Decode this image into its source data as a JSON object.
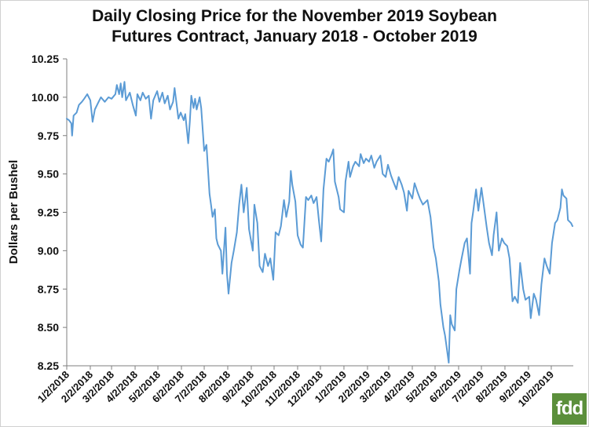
{
  "chart_data": {
    "type": "line",
    "title_lines": [
      "Daily Closing Price for the November 2019 Soybean",
      "Futures Contract, January 2018 - October 2019"
    ],
    "xlabel": "",
    "ylabel": "Dollars per Bushel",
    "ylim": [
      8.25,
      10.25
    ],
    "yticks": [
      "8.25",
      "8.50",
      "8.75",
      "9.00",
      "9.25",
      "9.50",
      "9.75",
      "10.00",
      "10.25"
    ],
    "xticks": [
      "1/2/2018",
      "2/2/2018",
      "3/2/2018",
      "4/2/2018",
      "5/2/2018",
      "6/2/2018",
      "7/2/2018",
      "8/2/2018",
      "9/2/2018",
      "10/2/2018",
      "11/2/2018",
      "12/2/2018",
      "1/2/2019",
      "2/2/2019",
      "3/2/2019",
      "4/2/2019",
      "5/2/2019",
      "6/2/2019",
      "7/2/2019",
      "8/2/2019",
      "9/2/2019",
      "10/2/2019"
    ],
    "xlim": [
      "2018-01-02",
      "2019-10-31"
    ],
    "line_color": "#5b9bd5",
    "grid": false,
    "series": [
      {
        "values": [
          [
            "2018-01-02",
            9.86
          ],
          [
            "2018-01-05",
            9.85
          ],
          [
            "2018-01-08",
            9.83
          ],
          [
            "2018-01-09",
            9.75
          ],
          [
            "2018-01-11",
            9.88
          ],
          [
            "2018-01-15",
            9.9
          ],
          [
            "2018-01-18",
            9.95
          ],
          [
            "2018-01-22",
            9.97
          ],
          [
            "2018-01-25",
            9.99
          ],
          [
            "2018-01-29",
            10.02
          ],
          [
            "2018-02-02",
            9.98
          ],
          [
            "2018-02-05",
            9.84
          ],
          [
            "2018-02-08",
            9.92
          ],
          [
            "2018-02-12",
            9.96
          ],
          [
            "2018-02-16",
            10.0
          ],
          [
            "2018-02-21",
            9.97
          ],
          [
            "2018-02-26",
            10.0
          ],
          [
            "2018-03-02",
            9.99
          ],
          [
            "2018-03-07",
            10.02
          ],
          [
            "2018-03-09",
            10.08
          ],
          [
            "2018-03-12",
            10.02
          ],
          [
            "2018-03-14",
            10.09
          ],
          [
            "2018-03-16",
            10.0
          ],
          [
            "2018-03-19",
            10.1
          ],
          [
            "2018-03-21",
            9.98
          ],
          [
            "2018-03-26",
            10.03
          ],
          [
            "2018-03-30",
            9.95
          ],
          [
            "2018-04-03",
            9.88
          ],
          [
            "2018-04-05",
            10.02
          ],
          [
            "2018-04-09",
            9.98
          ],
          [
            "2018-04-12",
            10.03
          ],
          [
            "2018-04-16",
            9.99
          ],
          [
            "2018-04-20",
            10.01
          ],
          [
            "2018-04-23",
            9.86
          ],
          [
            "2018-04-26",
            9.98
          ],
          [
            "2018-05-01",
            10.04
          ],
          [
            "2018-05-04",
            9.97
          ],
          [
            "2018-05-08",
            10.03
          ],
          [
            "2018-05-11",
            9.96
          ],
          [
            "2018-05-15",
            10.01
          ],
          [
            "2018-05-18",
            9.92
          ],
          [
            "2018-05-22",
            9.97
          ],
          [
            "2018-05-24",
            10.06
          ],
          [
            "2018-05-29",
            9.86
          ],
          [
            "2018-06-01",
            9.9
          ],
          [
            "2018-06-05",
            9.85
          ],
          [
            "2018-06-07",
            9.89
          ],
          [
            "2018-06-11",
            9.7
          ],
          [
            "2018-06-13",
            9.84
          ],
          [
            "2018-06-15",
            10.01
          ],
          [
            "2018-06-18",
            9.93
          ],
          [
            "2018-06-20",
            9.99
          ],
          [
            "2018-06-22",
            9.92
          ],
          [
            "2018-06-26",
            10.0
          ],
          [
            "2018-06-28",
            9.93
          ],
          [
            "2018-07-02",
            9.65
          ],
          [
            "2018-07-05",
            9.69
          ],
          [
            "2018-07-09",
            9.37
          ],
          [
            "2018-07-11",
            9.3
          ],
          [
            "2018-07-13",
            9.22
          ],
          [
            "2018-07-16",
            9.27
          ],
          [
            "2018-07-18",
            9.08
          ],
          [
            "2018-07-20",
            9.04
          ],
          [
            "2018-07-24",
            9.0
          ],
          [
            "2018-07-26",
            8.85
          ],
          [
            "2018-07-30",
            9.15
          ],
          [
            "2018-08-01",
            8.85
          ],
          [
            "2018-08-03",
            8.72
          ],
          [
            "2018-08-07",
            8.92
          ],
          [
            "2018-08-10",
            9.0
          ],
          [
            "2018-08-14",
            9.12
          ],
          [
            "2018-08-17",
            9.3
          ],
          [
            "2018-08-20",
            9.43
          ],
          [
            "2018-08-23",
            9.25
          ],
          [
            "2018-08-27",
            9.41
          ],
          [
            "2018-08-30",
            9.14
          ],
          [
            "2018-09-04",
            9.0
          ],
          [
            "2018-09-06",
            9.3
          ],
          [
            "2018-09-10",
            9.18
          ],
          [
            "2018-09-13",
            8.9
          ],
          [
            "2018-09-17",
            8.86
          ],
          [
            "2018-09-20",
            8.98
          ],
          [
            "2018-09-24",
            8.9
          ],
          [
            "2018-09-27",
            8.95
          ],
          [
            "2018-10-01",
            8.81
          ],
          [
            "2018-10-04",
            9.12
          ],
          [
            "2018-10-08",
            9.1
          ],
          [
            "2018-10-11",
            9.16
          ],
          [
            "2018-10-15",
            9.33
          ],
          [
            "2018-10-18",
            9.22
          ],
          [
            "2018-10-22",
            9.32
          ],
          [
            "2018-10-24",
            9.52
          ],
          [
            "2018-10-26",
            9.43
          ],
          [
            "2018-10-30",
            9.32
          ],
          [
            "2018-11-02",
            9.1
          ],
          [
            "2018-11-06",
            9.04
          ],
          [
            "2018-11-09",
            9.02
          ],
          [
            "2018-11-13",
            9.35
          ],
          [
            "2018-11-16",
            9.33
          ],
          [
            "2018-11-20",
            9.36
          ],
          [
            "2018-11-23",
            9.31
          ],
          [
            "2018-11-27",
            9.35
          ],
          [
            "2018-11-30",
            9.2
          ],
          [
            "2018-12-03",
            9.06
          ],
          [
            "2018-12-06",
            9.4
          ],
          [
            "2018-12-10",
            9.6
          ],
          [
            "2018-12-13",
            9.58
          ],
          [
            "2018-12-17",
            9.63
          ],
          [
            "2018-12-19",
            9.66
          ],
          [
            "2018-12-21",
            9.45
          ],
          [
            "2018-12-26",
            9.35
          ],
          [
            "2018-12-28",
            9.27
          ],
          [
            "2019-01-02",
            9.25
          ],
          [
            "2019-01-04",
            9.45
          ],
          [
            "2019-01-08",
            9.58
          ],
          [
            "2019-01-10",
            9.48
          ],
          [
            "2019-01-14",
            9.55
          ],
          [
            "2019-01-17",
            9.58
          ],
          [
            "2019-01-22",
            9.55
          ],
          [
            "2019-01-24",
            9.63
          ],
          [
            "2019-01-28",
            9.57
          ],
          [
            "2019-01-31",
            9.6
          ],
          [
            "2019-02-04",
            9.58
          ],
          [
            "2019-02-07",
            9.62
          ],
          [
            "2019-02-11",
            9.54
          ],
          [
            "2019-02-14",
            9.58
          ],
          [
            "2019-02-19",
            9.62
          ],
          [
            "2019-02-22",
            9.5
          ],
          [
            "2019-02-26",
            9.48
          ],
          [
            "2019-03-01",
            9.56
          ],
          [
            "2019-03-05",
            9.49
          ],
          [
            "2019-03-08",
            9.45
          ],
          [
            "2019-03-12",
            9.4
          ],
          [
            "2019-03-15",
            9.48
          ],
          [
            "2019-03-19",
            9.43
          ],
          [
            "2019-03-22",
            9.38
          ],
          [
            "2019-03-26",
            9.26
          ],
          [
            "2019-03-28",
            9.39
          ],
          [
            "2019-04-02",
            9.34
          ],
          [
            "2019-04-05",
            9.44
          ],
          [
            "2019-04-09",
            9.38
          ],
          [
            "2019-04-12",
            9.34
          ],
          [
            "2019-04-16",
            9.3
          ],
          [
            "2019-04-22",
            9.33
          ],
          [
            "2019-04-26",
            9.22
          ],
          [
            "2019-04-30",
            9.02
          ],
          [
            "2019-05-03",
            8.95
          ],
          [
            "2019-05-07",
            8.8
          ],
          [
            "2019-05-09",
            8.65
          ],
          [
            "2019-05-13",
            8.5
          ],
          [
            "2019-05-15",
            8.45
          ],
          [
            "2019-05-17",
            8.38
          ],
          [
            "2019-05-20",
            8.27
          ],
          [
            "2019-05-22",
            8.58
          ],
          [
            "2019-05-24",
            8.52
          ],
          [
            "2019-05-28",
            8.48
          ],
          [
            "2019-05-30",
            8.75
          ],
          [
            "2019-06-03",
            8.87
          ],
          [
            "2019-06-06",
            8.95
          ],
          [
            "2019-06-10",
            9.05
          ],
          [
            "2019-06-13",
            9.08
          ],
          [
            "2019-06-17",
            8.85
          ],
          [
            "2019-06-19",
            9.18
          ],
          [
            "2019-06-21",
            9.25
          ],
          [
            "2019-06-25",
            9.4
          ],
          [
            "2019-06-28",
            9.26
          ],
          [
            "2019-07-02",
            9.41
          ],
          [
            "2019-07-05",
            9.3
          ],
          [
            "2019-07-09",
            9.15
          ],
          [
            "2019-07-12",
            9.05
          ],
          [
            "2019-07-16",
            8.97
          ],
          [
            "2019-07-18",
            9.1
          ],
          [
            "2019-07-22",
            9.25
          ],
          [
            "2019-07-25",
            9.0
          ],
          [
            "2019-07-29",
            9.08
          ],
          [
            "2019-08-01",
            9.05
          ],
          [
            "2019-08-05",
            9.03
          ],
          [
            "2019-08-08",
            8.95
          ],
          [
            "2019-08-12",
            8.67
          ],
          [
            "2019-08-15",
            8.7
          ],
          [
            "2019-08-19",
            8.66
          ],
          [
            "2019-08-22",
            8.92
          ],
          [
            "2019-08-26",
            8.75
          ],
          [
            "2019-08-29",
            8.68
          ],
          [
            "2019-09-03",
            8.7
          ],
          [
            "2019-09-05",
            8.56
          ],
          [
            "2019-09-09",
            8.72
          ],
          [
            "2019-09-12",
            8.68
          ],
          [
            "2019-09-16",
            8.58
          ],
          [
            "2019-09-19",
            8.78
          ],
          [
            "2019-09-23",
            8.95
          ],
          [
            "2019-09-26",
            8.9
          ],
          [
            "2019-09-30",
            8.85
          ],
          [
            "2019-10-03",
            9.05
          ],
          [
            "2019-10-07",
            9.18
          ],
          [
            "2019-10-10",
            9.2
          ],
          [
            "2019-10-14",
            9.28
          ],
          [
            "2019-10-16",
            9.4
          ],
          [
            "2019-10-18",
            9.36
          ],
          [
            "2019-10-22",
            9.34
          ],
          [
            "2019-10-24",
            9.2
          ],
          [
            "2019-10-28",
            9.18
          ],
          [
            "2019-10-30",
            9.16
          ]
        ]
      }
    ]
  },
  "logo_text": "fdd"
}
